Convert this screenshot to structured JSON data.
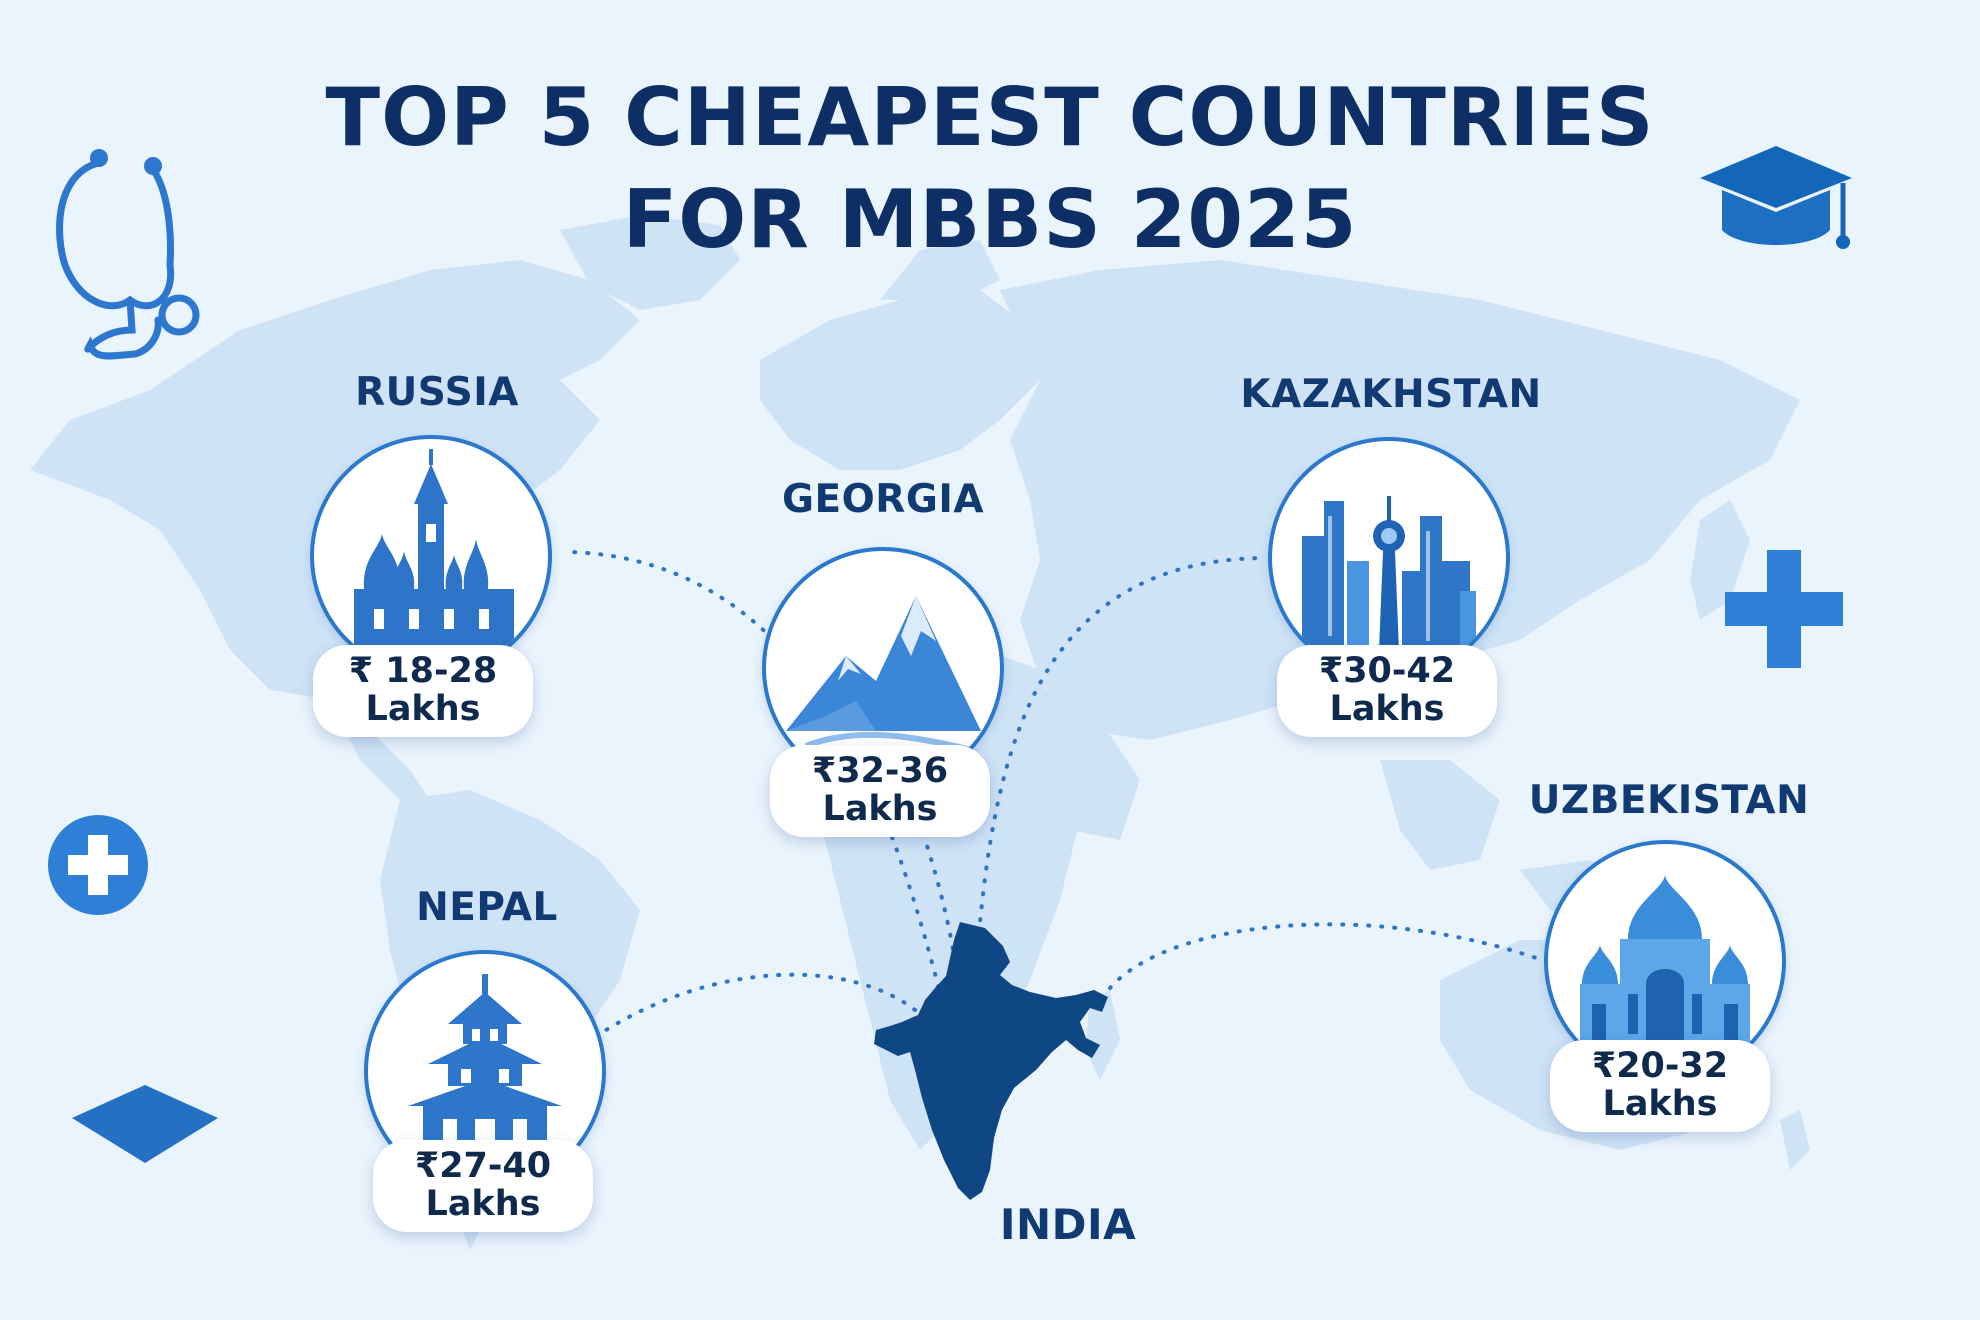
{
  "title": {
    "line1": "TOP 5 CHEAPEST COUNTRIES",
    "line2": "FOR MBBS 2025"
  },
  "colors": {
    "background": "#eaf4fd",
    "map": "#cfe3f7",
    "title": "#0d2f66",
    "accent": "#2a79cc",
    "india": "#0f4785"
  },
  "origin": {
    "name": "INDIA"
  },
  "countries": [
    {
      "name": "RUSSIA",
      "range": "₹ 18-28",
      "unit": "Lakhs",
      "landmark": "onion-domed-cathedral"
    },
    {
      "name": "GEORGIA",
      "range": "₹32-36",
      "unit": "Lakhs",
      "landmark": "mountain-peaks"
    },
    {
      "name": "KAZAKHSTAN",
      "range": "₹30-42",
      "unit": "Lakhs",
      "landmark": "city-skyline-tower"
    },
    {
      "name": "NEPAL",
      "range": "₹27-40",
      "unit": "Lakhs",
      "landmark": "pagoda-temple"
    },
    {
      "name": "UZBEKISTAN",
      "range": "₹20-32",
      "unit": "Lakhs",
      "landmark": "domed-mosque"
    }
  ],
  "icons": [
    "stethoscope-icon",
    "graduation-cap-icon",
    "medical-cross-icon",
    "medical-cross-badge-icon",
    "diamond-shape-icon"
  ]
}
